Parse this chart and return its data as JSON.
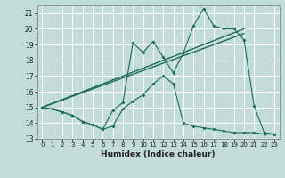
{
  "xlabel": "Humidex (Indice chaleur)",
  "bg_color": "#c2ddd8",
  "grid_color": "#ffffff",
  "line_color": "#1a6b5a",
  "xlim": [
    -0.5,
    23.5
  ],
  "ylim": [
    13,
    21.5
  ],
  "yticks": [
    13,
    14,
    15,
    16,
    17,
    18,
    19,
    20,
    21
  ],
  "xticks": [
    0,
    1,
    2,
    3,
    4,
    5,
    6,
    7,
    8,
    9,
    10,
    11,
    12,
    13,
    14,
    15,
    16,
    17,
    18,
    19,
    20,
    21,
    22,
    23
  ],
  "series1_x": [
    0,
    1,
    2,
    3,
    4,
    5,
    6,
    7,
    8,
    9,
    10,
    11,
    12,
    13,
    14,
    15,
    16,
    17,
    18,
    19,
    20,
    21,
    22,
    23
  ],
  "series1_y": [
    15.0,
    14.9,
    14.7,
    14.5,
    14.1,
    13.9,
    13.6,
    13.8,
    14.9,
    15.4,
    15.8,
    16.5,
    17.0,
    16.5,
    14.0,
    13.8,
    13.7,
    13.6,
    13.5,
    13.4,
    13.4,
    13.4,
    13.3,
    13.3
  ],
  "series2_x": [
    0,
    1,
    2,
    3,
    4,
    5,
    6,
    7,
    8,
    9,
    10,
    11,
    12,
    13,
    14,
    15,
    16,
    17,
    18,
    19,
    20,
    21,
    22,
    23
  ],
  "series2_y": [
    15.0,
    14.9,
    14.7,
    14.5,
    14.1,
    13.9,
    13.6,
    14.8,
    15.3,
    19.1,
    18.5,
    19.2,
    18.2,
    17.2,
    18.5,
    20.2,
    21.3,
    20.2,
    20.0,
    20.0,
    19.3,
    15.1,
    13.4,
    13.3
  ],
  "trend1_x": [
    0,
    20
  ],
  "trend1_y": [
    15.0,
    19.7
  ],
  "trend2_x": [
    0,
    20
  ],
  "trend2_y": [
    15.0,
    20.0
  ]
}
